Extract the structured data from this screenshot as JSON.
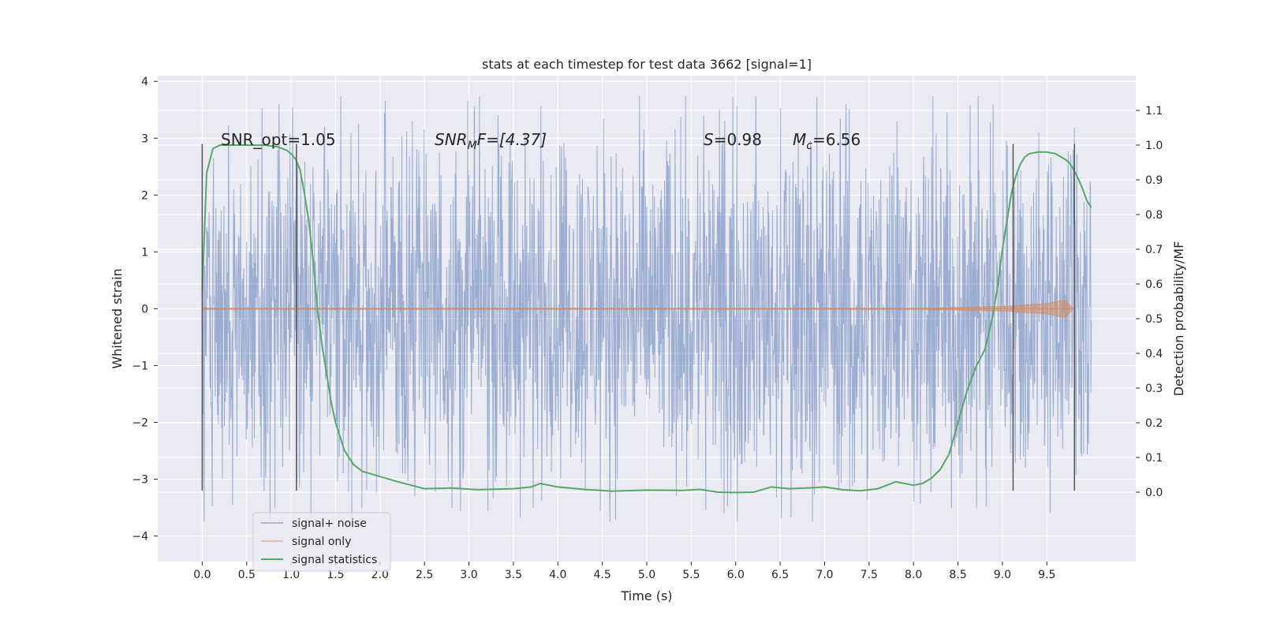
{
  "chart_data": {
    "type": "line",
    "title": "stats at each timestep for test data 3662 [signal=1]",
    "xlabel": "Time (s)",
    "ylabel_left": "Whitened strain",
    "ylabel_right": "Detection probability/MF",
    "xlim": [
      -0.5,
      10.5
    ],
    "ylim_left": [
      -4.45,
      4.1
    ],
    "ylim_right": [
      -0.2,
      1.2
    ],
    "x_ticks": [
      "0.0",
      "0.5",
      "1.0",
      "1.5",
      "2.0",
      "2.5",
      "3.0",
      "3.5",
      "4.0",
      "4.5",
      "5.0",
      "5.5",
      "6.0",
      "6.5",
      "7.0",
      "7.5",
      "8.0",
      "8.5",
      "9.0",
      "9.5"
    ],
    "y_ticks_left": [
      "−4",
      "−3",
      "−2",
      "−1",
      "0",
      "1",
      "2",
      "3",
      "4"
    ],
    "y_ticks_right": [
      "0.0",
      "0.1",
      "0.2",
      "0.3",
      "0.4",
      "0.5",
      "0.6",
      "0.7",
      "0.8",
      "0.9",
      "1.0",
      "1.1"
    ],
    "grid": true,
    "legend_position": "bottom-left",
    "colors": {
      "background": "#eaeaf2",
      "noise": "#4c72b0",
      "signal": "#dd8452",
      "statistics": "#55a868",
      "vline": "#555555"
    },
    "series": [
      {
        "name": "signal+ noise",
        "axis": "left",
        "summary": {
          "t_start": 0.0,
          "t_end": 10.0,
          "typical_min": -2.0,
          "typical_max": 2.1,
          "peak_max": 3.75,
          "peak_min": -3.75
        }
      },
      {
        "name": "signal only",
        "axis": "left",
        "x": [
          0.0,
          8.0,
          9.0,
          9.5,
          9.62,
          9.7,
          9.8
        ],
        "y_envelope": [
          0.01,
          0.01,
          0.04,
          0.09,
          0.13,
          0.15,
          0.0
        ]
      },
      {
        "name": "signal statistics",
        "axis": "right",
        "x": [
          0.0,
          0.05,
          0.12,
          0.2,
          0.3,
          0.5,
          0.7,
          0.85,
          0.95,
          1.0,
          1.05,
          1.1,
          1.15,
          1.2,
          1.25,
          1.3,
          1.35,
          1.4,
          1.45,
          1.5,
          1.55,
          1.6,
          1.65,
          1.7,
          1.8,
          2.0,
          2.2,
          2.5,
          2.8,
          3.1,
          3.5,
          3.7,
          3.8,
          3.9,
          4.0,
          4.3,
          4.6,
          5.0,
          5.4,
          5.6,
          5.8,
          6.0,
          6.2,
          6.4,
          6.6,
          6.8,
          7.0,
          7.2,
          7.4,
          7.6,
          7.7,
          7.8,
          7.9,
          8.0,
          8.1,
          8.2,
          8.3,
          8.4,
          8.5,
          8.6,
          8.7,
          8.8,
          8.85,
          8.9,
          8.95,
          9.0,
          9.05,
          9.1,
          9.15,
          9.2,
          9.25,
          9.3,
          9.4,
          9.5,
          9.6,
          9.7,
          9.75,
          9.8,
          9.85,
          9.9,
          9.95,
          10.0
        ],
        "y": [
          0.58,
          0.92,
          0.99,
          1.0,
          1.0,
          1.0,
          1.0,
          0.995,
          0.985,
          0.975,
          0.96,
          0.93,
          0.86,
          0.78,
          0.66,
          0.52,
          0.42,
          0.34,
          0.26,
          0.2,
          0.16,
          0.12,
          0.1,
          0.08,
          0.06,
          0.045,
          0.03,
          0.01,
          0.012,
          0.007,
          0.01,
          0.015,
          0.025,
          0.02,
          0.015,
          0.008,
          0.003,
          0.006,
          0.005,
          0.008,
          0.0,
          -0.001,
          0.0,
          0.015,
          0.01,
          0.012,
          0.015,
          0.007,
          0.004,
          0.01,
          0.02,
          0.03,
          0.025,
          0.02,
          0.025,
          0.04,
          0.065,
          0.11,
          0.2,
          0.29,
          0.36,
          0.41,
          0.46,
          0.52,
          0.6,
          0.7,
          0.78,
          0.86,
          0.91,
          0.945,
          0.965,
          0.975,
          0.98,
          0.98,
          0.975,
          0.96,
          0.95,
          0.93,
          0.905,
          0.875,
          0.84,
          0.82
        ]
      }
    ],
    "vertical_lines": [
      {
        "x": 0.0,
        "ymin": -3.2,
        "ymax": 2.9
      },
      {
        "x": 1.06,
        "ymin": -3.2,
        "ymax": 2.9
      },
      {
        "x": 9.12,
        "ymin": -3.2,
        "ymax": 2.9
      },
      {
        "x": 9.81,
        "ymin": -3.2,
        "ymax": 2.9
      }
    ],
    "annotations": {
      "snr_opt": "SNR_opt=1.05",
      "snr_mf_main": "SNR",
      "snr_mf_sub": "M",
      "snr_mf_tail": "F=[4.37]",
      "s_main": "S",
      "s_tail": "=0.98",
      "mc_main": "M",
      "mc_sub": "c",
      "mc_tail": "=6.56"
    }
  }
}
